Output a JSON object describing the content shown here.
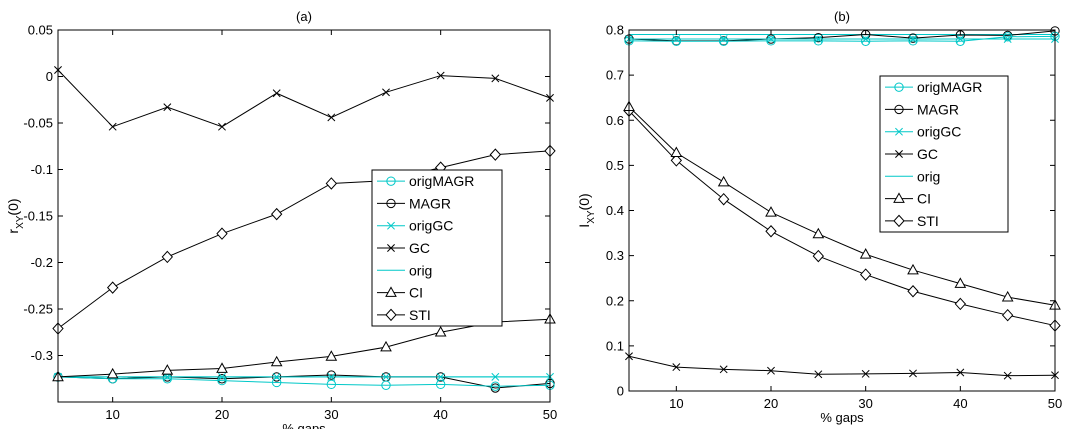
{
  "chart_data": [
    {
      "type": "line",
      "panel_label": "(a)",
      "xlabel": "% gaps",
      "ylabel": "r",
      "ylabel_sub": "XY",
      "ylabel_suffix": "(0)",
      "xlim": [
        5,
        50
      ],
      "ylim": [
        -0.35,
        0.05
      ],
      "xticks": [
        10,
        20,
        30,
        40,
        50
      ],
      "yticks": [
        -0.3,
        -0.25,
        -0.2,
        -0.15,
        -0.1,
        -0.05,
        0,
        0.05
      ],
      "ytick_labels": [
        "-0.3",
        "-0.25",
        "-0.2",
        "-0.15",
        "-0.1",
        "-0.05",
        "0",
        "0.05"
      ],
      "grid": false,
      "legend_position": "right",
      "x": [
        5,
        10,
        15,
        20,
        25,
        30,
        35,
        40,
        45,
        50
      ],
      "series": [
        {
          "name": "origMAGR",
          "color": "#00c8c8",
          "marker": "circle",
          "values": [
            -0.323,
            -0.325,
            -0.325,
            -0.327,
            -0.329,
            -0.331,
            -0.332,
            -0.331,
            -0.333,
            -0.332
          ]
        },
        {
          "name": "MAGR",
          "color": "#000000",
          "marker": "circle",
          "values": [
            -0.323,
            -0.325,
            -0.323,
            -0.325,
            -0.323,
            -0.321,
            -0.323,
            -0.323,
            -0.335,
            -0.33
          ]
        },
        {
          "name": "origGC",
          "color": "#00c8c8",
          "marker": "x",
          "values": [
            -0.323,
            -0.323,
            -0.323,
            -0.323,
            -0.323,
            -0.323,
            -0.323,
            -0.323,
            -0.323,
            -0.323
          ]
        },
        {
          "name": "GC",
          "color": "#000000",
          "marker": "x",
          "values": [
            0.007,
            -0.054,
            -0.033,
            -0.054,
            -0.018,
            -0.044,
            -0.017,
            0.001,
            -0.002,
            -0.023
          ]
        },
        {
          "name": "orig",
          "color": "#00c8c8",
          "marker": "none",
          "values": [
            -0.323,
            -0.323,
            -0.323,
            -0.323,
            -0.323,
            -0.323,
            -0.323,
            -0.323,
            -0.323,
            -0.323
          ]
        },
        {
          "name": "CI",
          "color": "#000000",
          "marker": "triangle",
          "values": [
            -0.323,
            -0.32,
            -0.316,
            -0.314,
            -0.307,
            -0.301,
            -0.291,
            -0.275,
            -0.264,
            -0.261
          ]
        },
        {
          "name": "STI",
          "color": "#000000",
          "marker": "diamond",
          "values": [
            -0.271,
            -0.227,
            -0.194,
            -0.169,
            -0.148,
            -0.115,
            -0.112,
            -0.098,
            -0.084,
            -0.08
          ]
        }
      ]
    },
    {
      "type": "line",
      "panel_label": "(b)",
      "xlabel": "% gaps",
      "ylabel": "I",
      "ylabel_sub": "XY",
      "ylabel_suffix": "(0)",
      "xlim": [
        5,
        50
      ],
      "ylim": [
        0,
        0.8
      ],
      "xticks": [
        10,
        20,
        30,
        40,
        50
      ],
      "yticks": [
        0,
        0.1,
        0.2,
        0.3,
        0.4,
        0.5,
        0.6,
        0.7,
        0.8
      ],
      "ytick_labels": [
        "0",
        "0.1",
        "0.2",
        "0.3",
        "0.4",
        "0.5",
        "0.6",
        "0.7",
        "0.8"
      ],
      "grid": false,
      "legend_position": "top-right",
      "x": [
        5,
        10,
        15,
        20,
        25,
        30,
        35,
        40,
        45,
        50
      ],
      "series": [
        {
          "name": "origMAGR",
          "color": "#00c8c8",
          "marker": "circle",
          "values": [
            0.776,
            0.775,
            0.775,
            0.776,
            0.776,
            0.775,
            0.776,
            0.775,
            0.785,
            0.786
          ]
        },
        {
          "name": "MAGR",
          "color": "#000000",
          "marker": "circle",
          "values": [
            0.78,
            0.776,
            0.776,
            0.78,
            0.783,
            0.79,
            0.782,
            0.789,
            0.788,
            0.798
          ]
        },
        {
          "name": "origGC",
          "color": "#00c8c8",
          "marker": "x",
          "values": [
            0.78,
            0.78,
            0.78,
            0.78,
            0.78,
            0.78,
            0.78,
            0.78,
            0.78,
            0.78
          ]
        },
        {
          "name": "GC",
          "color": "#000000",
          "marker": "x",
          "values": [
            0.077,
            0.053,
            0.048,
            0.045,
            0.037,
            0.038,
            0.039,
            0.041,
            0.034,
            0.035
          ]
        },
        {
          "name": "orig",
          "color": "#00c8c8",
          "marker": "none",
          "values": [
            0.79,
            0.79,
            0.79,
            0.79,
            0.79,
            0.79,
            0.79,
            0.79,
            0.79,
            0.79
          ]
        },
        {
          "name": "CI",
          "color": "#000000",
          "marker": "triangle",
          "values": [
            0.63,
            0.528,
            0.463,
            0.396,
            0.348,
            0.303,
            0.268,
            0.238,
            0.208,
            0.19
          ]
        },
        {
          "name": "STI",
          "color": "#000000",
          "marker": "diamond",
          "values": [
            0.621,
            0.511,
            0.425,
            0.354,
            0.299,
            0.258,
            0.221,
            0.193,
            0.168,
            0.145
          ]
        }
      ]
    }
  ]
}
